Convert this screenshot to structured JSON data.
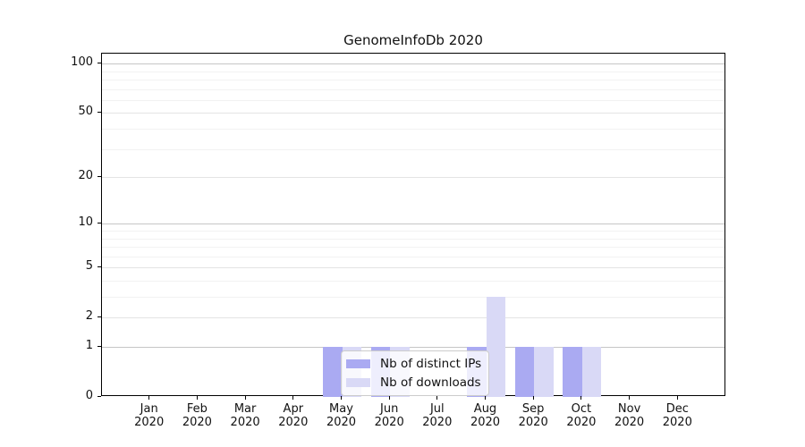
{
  "chart_data": {
    "type": "bar",
    "title": "GenomeInfoDb 2020",
    "categories": [
      "Jan 2020",
      "Feb 2020",
      "Mar 2020",
      "Apr 2020",
      "May 2020",
      "Jun 2020",
      "Jul 2020",
      "Aug 2020",
      "Sep 2020",
      "Oct 2020",
      "Nov 2020",
      "Dec 2020"
    ],
    "series": [
      {
        "name": "Nb of distinct IPs",
        "color": "#aaaaf2",
        "values": [
          0,
          0,
          0,
          0,
          1,
          1,
          0,
          1,
          1,
          1,
          0,
          0
        ]
      },
      {
        "name": "Nb of downloads",
        "color": "#d9d9f6",
        "values": [
          0,
          0,
          0,
          0,
          1,
          1,
          0,
          3,
          1,
          1,
          0,
          0
        ]
      }
    ],
    "xlabel": "",
    "ylabel": "",
    "yscale": "log10(1+value)",
    "ylim": [
      0,
      115
    ],
    "yticks": [
      0,
      1,
      2,
      5,
      10,
      20,
      50,
      100
    ],
    "yticks_minor": [
      3,
      4,
      6,
      7,
      8,
      9,
      30,
      40,
      60,
      70,
      80,
      90
    ],
    "grid": "horizontal",
    "legend_position": "lower center"
  },
  "colors": {
    "axis": "#000000",
    "grid_strong": "#c6c6c6",
    "grid_labeled": "#e4e4e4",
    "grid_minor": "#f2f2f2",
    "legend_border": "#cccccc"
  }
}
